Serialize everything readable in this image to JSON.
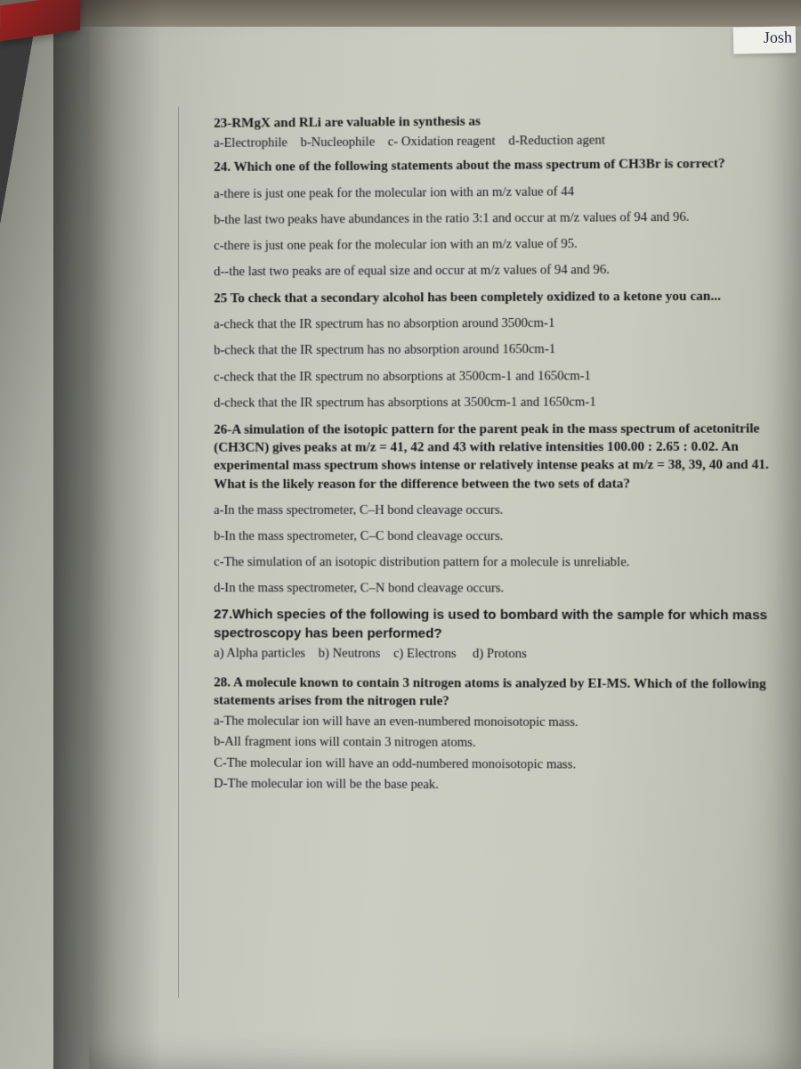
{
  "name_tag": "Josh",
  "q23": {
    "stem": "23-RMgX and RLi are valuable in synthesis as",
    "a": "a-Electrophile",
    "b": "b-Nucleophile",
    "c": "c- Oxidation reagent",
    "d": "d-Reduction agent"
  },
  "q24": {
    "stem": "24. Which one of the following statements about the mass spectrum of CH3Br is correct?",
    "a": "a-there is just one peak for the molecular ion with an m/z value of 44",
    "b": "b-the last two peaks have abundances in the ratio 3:1 and occur at m/z values of 94 and 96.",
    "c": "c-there is just one peak for the molecular ion with an m/z value of 95.",
    "d": "d--the last two peaks are of equal size and occur at m/z values of 94 and 96."
  },
  "q25": {
    "stem": "25 To check that a secondary alcohol has been completely oxidized to a ketone you can...",
    "a": "a-check that the IR spectrum has no absorption around 3500cm-1",
    "b": "b-check that the IR spectrum has no absorption around 1650cm-1",
    "c": "c-check that the IR spectrum no absorptions at 3500cm-1 and 1650cm-1",
    "d": "d-check that the IR spectrum has absorptions at 3500cm-1 and 1650cm-1"
  },
  "q26": {
    "stem": "26-A simulation of the isotopic pattern for the parent peak in the mass spectrum of acetonitrile (CH3CN) gives peaks at m/z = 41, 42 and 43 with relative intensities 100.00 : 2.65 : 0.02. An experimental mass spectrum shows intense or relatively intense peaks at m/z = 38, 39, 40 and 41. What is the likely reason for the difference between the two sets of data?",
    "a": "a-In the mass spectrometer, C–H bond cleavage occurs.",
    "b": "b-In the mass spectrometer, C–C bond cleavage occurs.",
    "c": "c-The simulation of an isotopic distribution pattern for a molecule is unreliable.",
    "d": "d-In the mass spectrometer, C–N bond cleavage occurs."
  },
  "q27": {
    "stem": "27.Which species of the following is used to bombard with the sample for which mass spectroscopy has been performed?",
    "a": "a) Alpha particles",
    "b": "b) Neutrons",
    "c": "c) Electrons",
    "d": "d) Protons"
  },
  "q28": {
    "stem": "28. A molecule known to contain 3 nitrogen atoms is analyzed by EI-MS. Which of the following statements arises from the nitrogen rule?",
    "a": "a-The molecular ion will have an even-numbered monoisotopic mass.",
    "b": "b-All fragment ions will contain 3 nitrogen atoms.",
    "c": "C-The molecular ion will have an odd-numbered monoisotopic mass.",
    "d": "D-The molecular ion will be the base peak."
  },
  "colors": {
    "text": "#1a1a1a",
    "page_light": "#cbcdc2",
    "page_shadow": "#a8a99e",
    "bg_dark": "#3a3a3a",
    "red_tab": "#a02020"
  }
}
